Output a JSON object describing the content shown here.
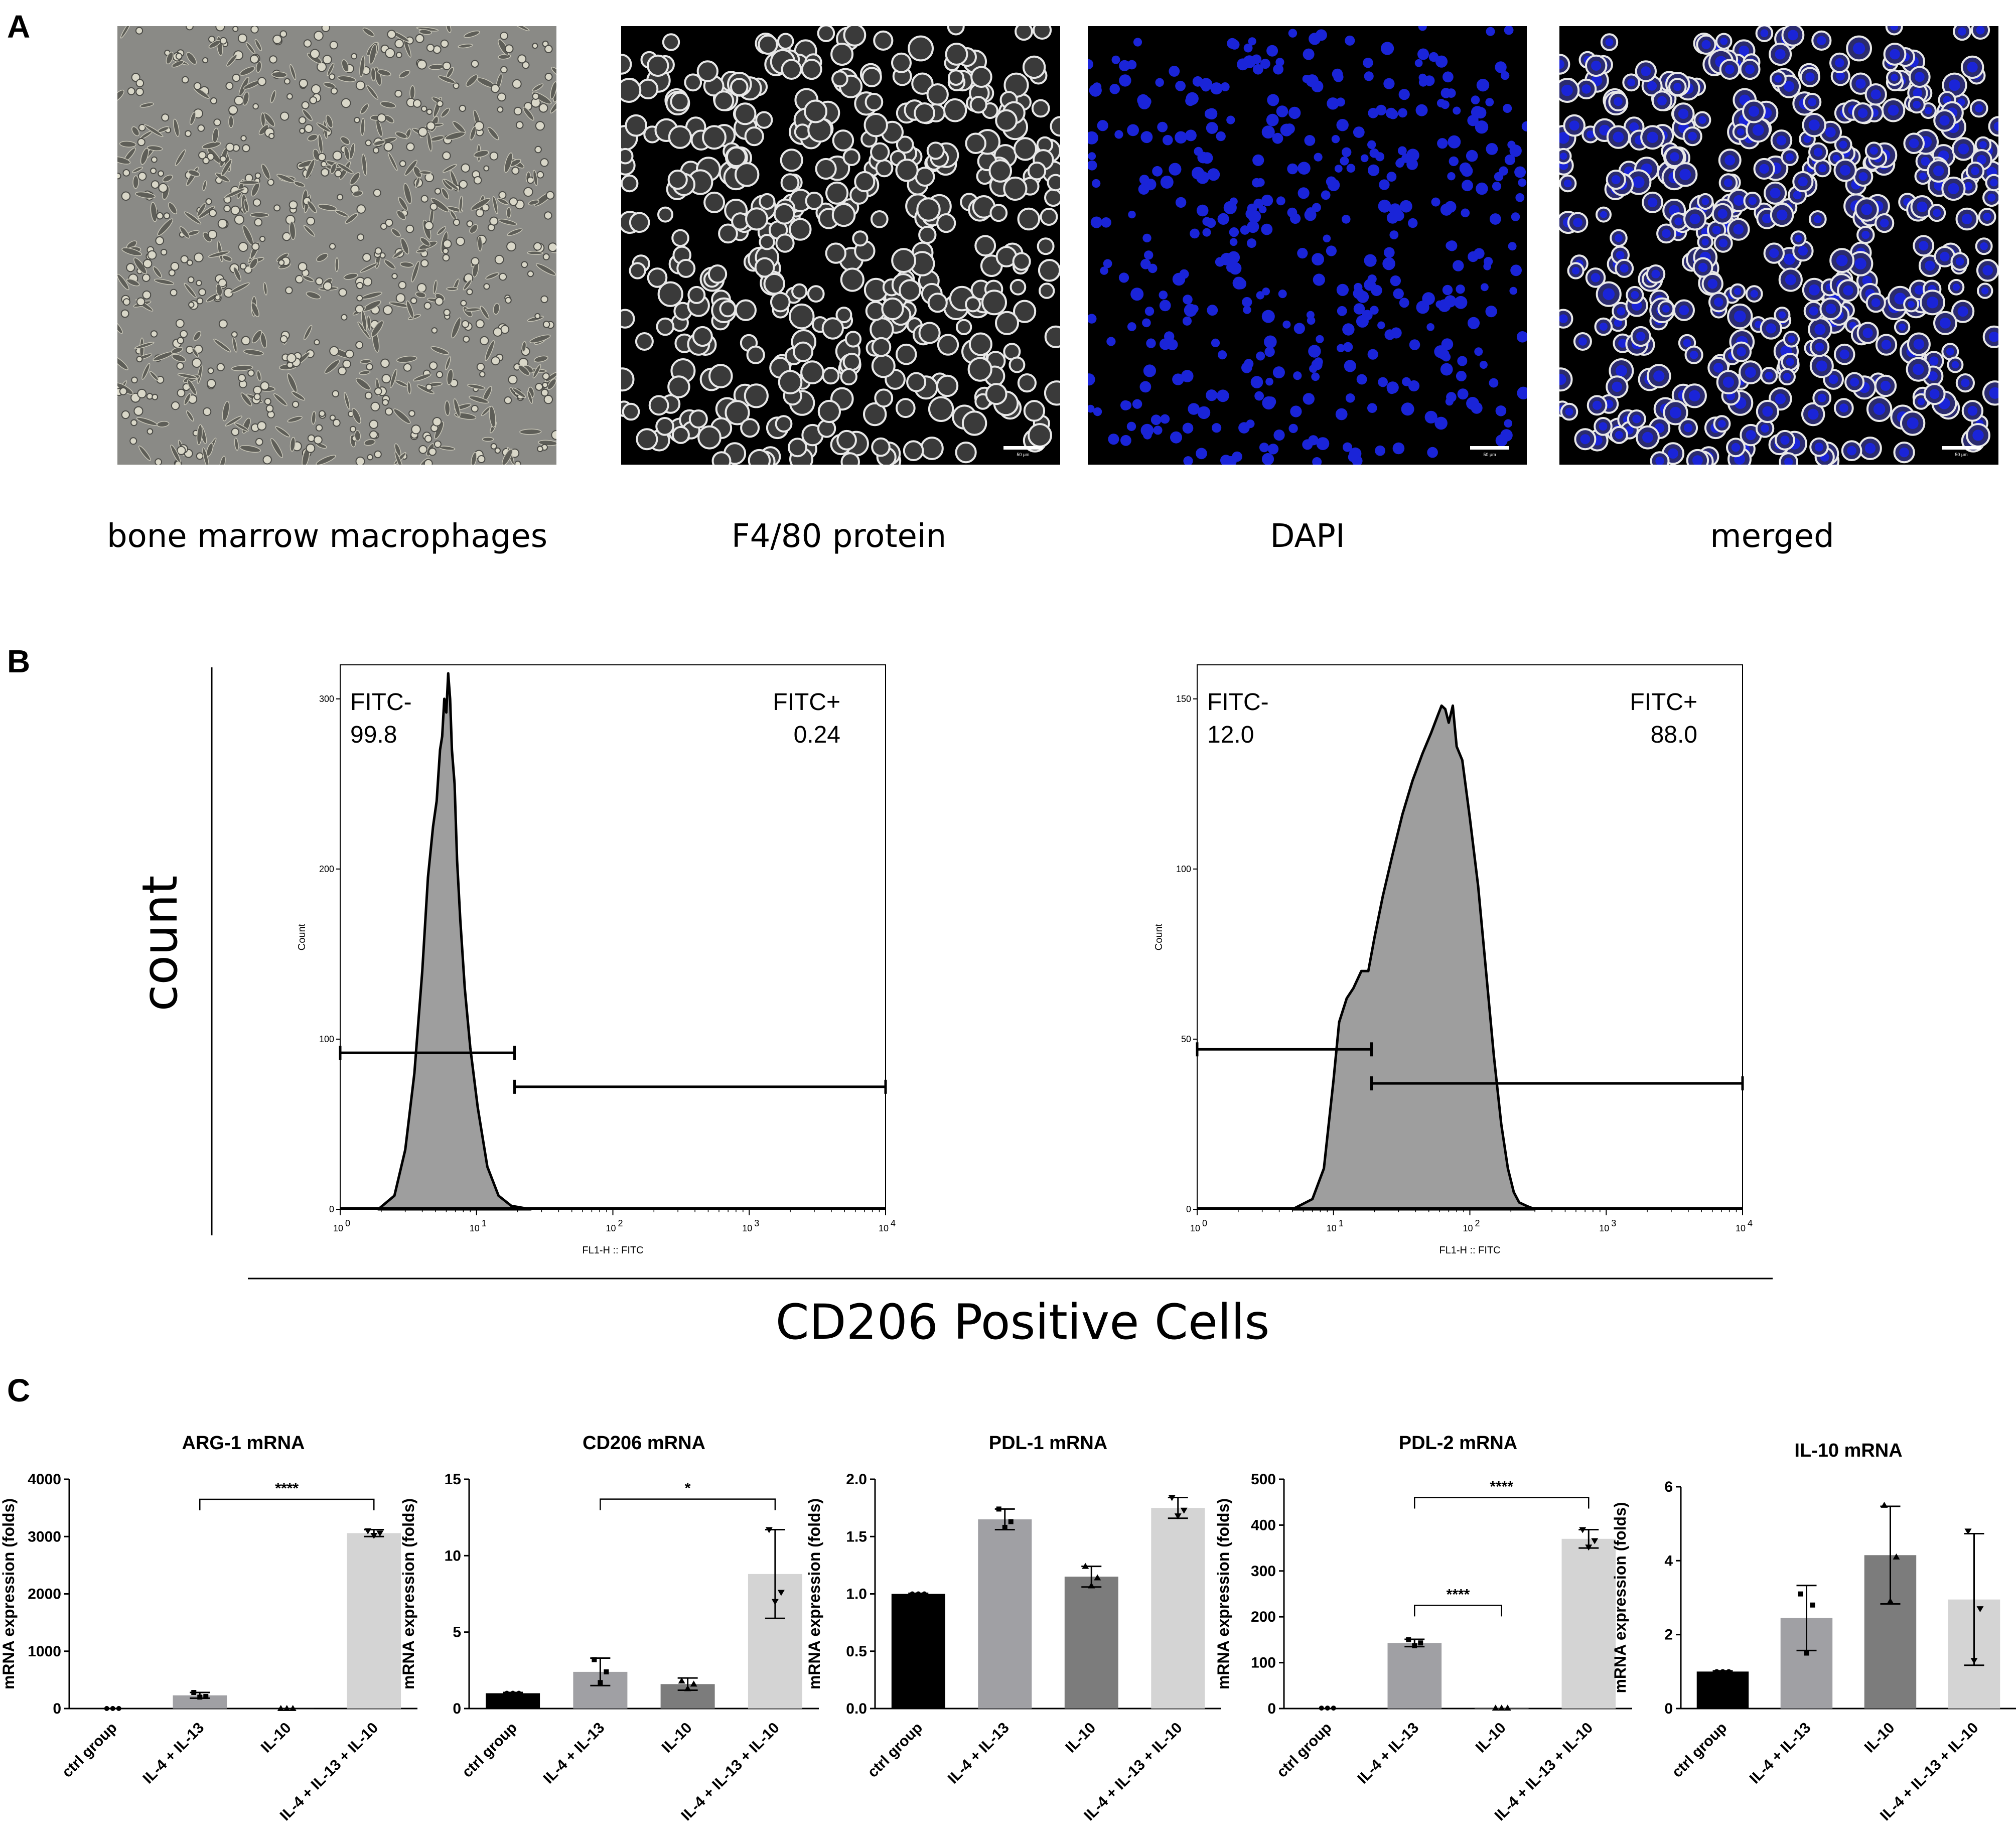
{
  "panel_a": {
    "letter": "A",
    "captions": [
      "bone marrow macrophages",
      "F4/80 protein",
      "DAPI",
      "merged"
    ],
    "scale_bar_text": "50 μm",
    "colors": {
      "dapi": "#1a24d8",
      "stain": "#e8e8e8",
      "phase_bg": "#8a8a86"
    }
  },
  "panel_b": {
    "letter": "B",
    "y_title": "count",
    "x_title": "CD206  Positive Cells",
    "fill_color": "#9e9e9e"
  },
  "panel_c": {
    "letter": "C",
    "colors": [
      "#000000",
      "#a0a0a4",
      "#7c7c7c",
      "#d4d4d4"
    ]
  },
  "chart_data": [
    {
      "type": "area",
      "id": "flow-left",
      "xscale": "log",
      "xlim": [
        1,
        10000
      ],
      "ylim": [
        0,
        320
      ],
      "xticks": [
        "10",
        "10",
        "10",
        "10",
        "10"
      ],
      "xtick_exponents": [
        "0",
        "1",
        "2",
        "3",
        "4"
      ],
      "yticks": [
        0,
        100,
        200,
        300
      ],
      "xlabel": "FL1-H :: FITC",
      "ylabel": "Count",
      "gate_neg": {
        "label": "FITC-",
        "percent": "99.8",
        "range": [
          1,
          19
        ],
        "level": 92
      },
      "gate_pos": {
        "label": "FITC+",
        "percent": "0.24",
        "range": [
          19,
          10000
        ],
        "level": 72
      },
      "x": [
        1.9,
        2.5,
        3.0,
        3.5,
        4.0,
        4.4,
        4.8,
        5.1,
        5.4,
        5.6,
        5.8,
        6.0,
        6.2,
        6.4,
        6.6,
        6.9,
        7.2,
        7.6,
        8.2,
        9.0,
        10.2,
        12.0,
        14.5,
        18.0,
        25.0
      ],
      "y": [
        0,
        8,
        35,
        80,
        140,
        195,
        225,
        240,
        270,
        278,
        300,
        292,
        315,
        300,
        270,
        250,
        205,
        170,
        130,
        95,
        60,
        25,
        8,
        2,
        0
      ]
    },
    {
      "type": "area",
      "id": "flow-right",
      "xscale": "log",
      "xlim": [
        1,
        10000
      ],
      "ylim": [
        0,
        160
      ],
      "xticks": [
        "10",
        "10",
        "10",
        "10",
        "10"
      ],
      "xtick_exponents": [
        "0",
        "1",
        "2",
        "3",
        "4"
      ],
      "yticks": [
        0,
        50,
        100,
        150
      ],
      "xlabel": "FL1-H :: FITC",
      "ylabel": "Count",
      "gate_neg": {
        "label": "FITC-",
        "percent": "12.0",
        "range": [
          1,
          19
        ],
        "level": 47
      },
      "gate_pos": {
        "label": "FITC+",
        "percent": "88.0",
        "range": [
          19,
          10000
        ],
        "level": 37
      },
      "x": [
        5,
        7,
        8.5,
        10,
        11,
        12.5,
        14,
        16,
        18,
        20,
        23,
        27,
        32,
        38,
        45,
        52,
        58,
        62,
        66,
        70,
        75,
        80,
        88,
        100,
        115,
        130,
        150,
        170,
        190,
        210,
        230,
        260,
        300
      ],
      "y": [
        0,
        3,
        12,
        38,
        55,
        62,
        65,
        70,
        70,
        80,
        92,
        104,
        116,
        126,
        134,
        140,
        145,
        148,
        147,
        143,
        148,
        136,
        132,
        115,
        95,
        72,
        45,
        25,
        12,
        5,
        2,
        1,
        0
      ]
    },
    {
      "type": "bar",
      "title": "ARG-1 mRNA",
      "ylabel": "mRNA expression (folds)",
      "categories": [
        "ctrl group",
        "IL-4 + IL-13",
        "IL-10",
        "IL-4 + IL-13 + IL-10"
      ],
      "values": [
        1,
        230,
        1,
        3060
      ],
      "errors": [
        0,
        50,
        0,
        60
      ],
      "points": [
        [
          1,
          1,
          1
        ],
        [
          280,
          200,
          210
        ],
        [
          1,
          1,
          1
        ],
        [
          3100,
          3020,
          3060
        ]
      ],
      "ylim": [
        0,
        4000
      ],
      "yticks": [
        0,
        1000,
        2000,
        3000,
        4000
      ],
      "brackets": [
        {
          "from": 1,
          "to": 3,
          "level": 3650,
          "label": "****"
        }
      ]
    },
    {
      "type": "bar",
      "title": "CD206 mRNA",
      "ylabel": "mRNA expression (folds)",
      "categories": [
        "ctrl group",
        "IL-4 + IL-13",
        "IL-10",
        "IL-4 + IL-13 + IL-10"
      ],
      "values": [
        1,
        2.4,
        1.6,
        8.8
      ],
      "errors": [
        0.05,
        0.9,
        0.4,
        2.9
      ],
      "points": [
        [
          1,
          1,
          1
        ],
        [
          3.2,
          1.7,
          2.4
        ],
        [
          1.8,
          1.3,
          1.6
        ],
        [
          11.7,
          7.0,
          7.6
        ]
      ],
      "ylim": [
        0,
        15
      ],
      "yticks": [
        0,
        5,
        10,
        15
      ],
      "brackets": [
        {
          "from": 1,
          "to": 3,
          "level": 13.7,
          "label": "*"
        }
      ]
    },
    {
      "type": "bar",
      "title": "PDL-1 mRNA",
      "ylabel": "mRNA expression (folds)",
      "categories": [
        "ctrl group",
        "IL-4 + IL-13",
        "IL-10",
        "IL-4 + IL-13 + IL-10"
      ],
      "values": [
        1.0,
        1.65,
        1.15,
        1.75
      ],
      "errors": [
        0.005,
        0.09,
        0.09,
        0.09
      ],
      "points": [
        [
          1,
          1,
          1
        ],
        [
          1.74,
          1.58,
          1.63
        ],
        [
          1.24,
          1.07,
          1.14
        ],
        [
          1.84,
          1.68,
          1.73
        ]
      ],
      "ylim": [
        0,
        2.0
      ],
      "yticks": [
        "0.0",
        "0.5",
        "1.0",
        "1.5",
        "2.0"
      ],
      "brackets": []
    },
    {
      "type": "bar",
      "title": "PDL-2 mRNA",
      "ylabel": "mRNA expression (folds)",
      "categories": [
        "ctrl group",
        "IL-4 + IL-13",
        "IL-10",
        "IL-4 + IL-13 + IL-10"
      ],
      "values": [
        1,
        143,
        1,
        370
      ],
      "errors": [
        0,
        8,
        0,
        20
      ],
      "points": [
        [
          1,
          1,
          1
        ],
        [
          150,
          137,
          143
        ],
        [
          1,
          1,
          1
        ],
        [
          390,
          352,
          366
        ]
      ],
      "ylim": [
        0,
        500
      ],
      "yticks": [
        0,
        100,
        200,
        300,
        400,
        500
      ],
      "brackets": [
        {
          "from": 1,
          "to": 3,
          "level": 460,
          "label": "****"
        },
        {
          "from": 1,
          "to": 2,
          "level": 225,
          "label": "****"
        }
      ]
    },
    {
      "type": "bar",
      "title": "IL-10 mRNA",
      "ylabel": "mRNA expression (folds)",
      "categories": [
        "ctrl group",
        "IL-4 + IL-13",
        "IL-10",
        "IL-4 + IL-13 + IL-10"
      ],
      "values": [
        1,
        2.45,
        4.15,
        2.95
      ],
      "errors": [
        0.02,
        0.88,
        1.32,
        1.78
      ],
      "points": [
        [
          1,
          1,
          1
        ],
        [
          3.1,
          1.5,
          2.8
        ],
        [
          5.5,
          2.9,
          4.1
        ],
        [
          4.8,
          1.3,
          2.7
        ]
      ],
      "ylim": [
        0,
        6
      ],
      "yticks": [
        0,
        2,
        4,
        6
      ],
      "brackets": []
    }
  ]
}
